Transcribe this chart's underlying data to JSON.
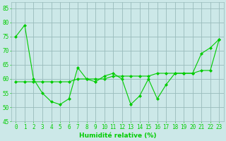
{
  "x": [
    0,
    1,
    2,
    3,
    4,
    5,
    6,
    7,
    8,
    9,
    10,
    11,
    12,
    13,
    14,
    15,
    16,
    17,
    18,
    19,
    20,
    21,
    22,
    23
  ],
  "y_zigzag": [
    75,
    79,
    60,
    55,
    52,
    51,
    53,
    64,
    60,
    59,
    61,
    62,
    60,
    51,
    54,
    60,
    53,
    58,
    62,
    62,
    62,
    69,
    71,
    74
  ],
  "y_trend": [
    59,
    59,
    59,
    59,
    59,
    59,
    59,
    60,
    60,
    60,
    60,
    61,
    61,
    61,
    61,
    61,
    62,
    62,
    62,
    62,
    62,
    63,
    63,
    74
  ],
  "line_color": "#00cc00",
  "bg_color": "#cce8e8",
  "grid_color": "#99bbbb",
  "xlabel": "Humidité relative (%)",
  "xlim": [
    -0.5,
    23.5
  ],
  "ylim": [
    45,
    87
  ],
  "yticks": [
    45,
    50,
    55,
    60,
    65,
    70,
    75,
    80,
    85
  ],
  "xticks": [
    0,
    1,
    2,
    3,
    4,
    5,
    6,
    7,
    8,
    9,
    10,
    11,
    12,
    13,
    14,
    15,
    16,
    17,
    18,
    19,
    20,
    21,
    22,
    23
  ],
  "label_fontsize": 6.5,
  "tick_fontsize": 5.5
}
